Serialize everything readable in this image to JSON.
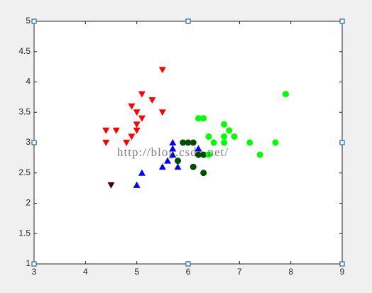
{
  "chart_data": {
    "type": "scatter",
    "watermark": "http://blog.csdn.net/",
    "xlim": [
      3,
      9
    ],
    "xticks": [
      3,
      4,
      5,
      6,
      7,
      8,
      9
    ],
    "ylim": [
      1,
      5
    ],
    "yticks": [
      1,
      1.5,
      2,
      2.5,
      3,
      3.5,
      4,
      4.5,
      5
    ],
    "series": [
      {
        "color": "#ff0000",
        "marker": "triangle-down",
        "x": [
          5.5,
          5.1,
          4.9,
          5.0,
          5.3,
          5.5,
          5.1,
          5.0,
          4.4,
          4.6,
          5.0,
          4.9,
          4.4,
          4.8
        ],
        "y": [
          4.2,
          3.8,
          3.6,
          3.5,
          3.7,
          3.5,
          3.4,
          3.3,
          3.2,
          3.2,
          3.2,
          3.1,
          3.0,
          3.0
        ]
      },
      {
        "color": "#4d0000",
        "marker": "triangle-down",
        "x": [
          4.5
        ],
        "y": [
          2.3
        ]
      },
      {
        "color": "#0000ff",
        "marker": "triangle-up",
        "x": [
          5.7,
          5.7,
          5.7,
          6.2,
          5.6,
          5.5,
          5.8,
          5.1,
          5.0
        ],
        "y": [
          3.0,
          2.9,
          2.8,
          2.9,
          2.7,
          2.6,
          2.6,
          2.5,
          2.3
        ]
      },
      {
        "color": "#004d00",
        "marker": "circle",
        "x": [
          5.9,
          6.0,
          6.1,
          5.8,
          6.2,
          6.3,
          6.1,
          6.3
        ],
        "y": [
          3.0,
          3.0,
          3.0,
          2.7,
          2.8,
          2.8,
          2.6,
          2.5
        ]
      },
      {
        "color": "#00ff00",
        "marker": "circle",
        "x": [
          7.9,
          6.2,
          6.3,
          6.7,
          6.8,
          6.4,
          6.7,
          6.9,
          6.5,
          6.7,
          7.2,
          7.7,
          6.4,
          7.4
        ],
        "y": [
          3.8,
          3.4,
          3.4,
          3.3,
          3.2,
          3.1,
          3.1,
          3.1,
          3.0,
          3.0,
          3.0,
          3.0,
          2.8,
          2.8
        ]
      }
    ]
  }
}
